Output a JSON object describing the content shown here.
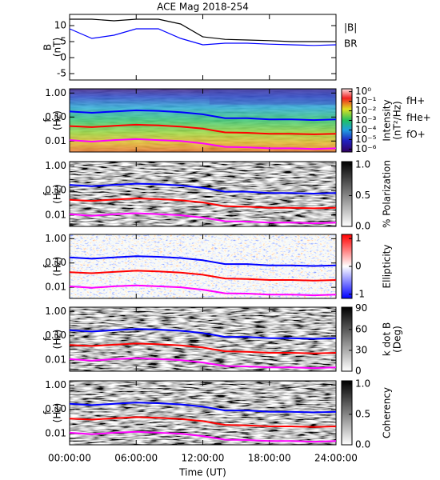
{
  "chart_data": [
    {
      "type": "line",
      "title": "ACE Mag 2018-254",
      "ylabel": [
        "B",
        "(nT)"
      ],
      "x": [
        0,
        2,
        4,
        6,
        8,
        10,
        12,
        14,
        16,
        18,
        20,
        22,
        24
      ],
      "xlim": [
        0,
        24
      ],
      "ylim": [
        -7,
        13.5
      ],
      "yticks": [
        -5,
        0,
        5,
        10
      ],
      "legend": "right",
      "series": [
        {
          "name": "|B|",
          "color": "#000000",
          "values": [
            12,
            12,
            11.5,
            12,
            12,
            10.5,
            6.5,
            5.7,
            5.5,
            5.3,
            5,
            5,
            5
          ]
        },
        {
          "name": "BR",
          "color": "#0000ff",
          "values": [
            9,
            6,
            7,
            9,
            9,
            6,
            4,
            4.5,
            4.5,
            4.2,
            4,
            3.8,
            4
          ]
        }
      ]
    },
    {
      "type": "spectrogram",
      "ylabel": [
        "f",
        "(Hz)"
      ],
      "log": true,
      "colormap": "rainbow",
      "x": [
        0,
        2,
        4,
        6,
        8,
        10,
        12,
        14,
        16,
        18,
        20,
        22,
        24
      ],
      "xlim": [
        0,
        24
      ],
      "ylim": [
        0.0035,
        1.5
      ],
      "yticks": [
        {
          "value": 1,
          "label": "1.00"
        },
        {
          "value": 0.1,
          "label": "0.10"
        },
        {
          "value": 0.01,
          "label": "0.01"
        }
      ],
      "colorbar_label": [
        "Intensity",
        "(nT²/Hz)"
      ],
      "clim": [
        5e-07,
        2
      ],
      "colorbar_log": true,
      "cticks": [
        {
          "value": 1,
          "label": "10⁰"
        },
        {
          "value": 0.1,
          "label": "10⁻¹"
        },
        {
          "value": 0.01,
          "label": "10⁻²"
        },
        {
          "value": 0.001,
          "label": "10⁻³"
        },
        {
          "value": 0.0001,
          "label": "10⁻⁴"
        },
        {
          "value": 1e-05,
          "label": "10⁻⁵"
        },
        {
          "value": 1e-06,
          "label": "10⁻⁶"
        }
      ],
      "legend": "right",
      "series": [
        {
          "name": "fH+",
          "color": "#0000ff",
          "values": [
            0.17,
            0.15,
            0.17,
            0.19,
            0.18,
            0.16,
            0.13,
            0.09,
            0.09,
            0.08,
            0.08,
            0.075,
            0.08
          ]
        },
        {
          "name": "fHe+",
          "color": "#ff0000",
          "values": [
            0.042,
            0.038,
            0.043,
            0.048,
            0.045,
            0.04,
            0.033,
            0.023,
            0.022,
            0.02,
            0.02,
            0.019,
            0.02
          ]
        },
        {
          "name": "fO+",
          "color": "#ff00ff",
          "values": [
            0.011,
            0.0095,
            0.011,
            0.012,
            0.011,
            0.01,
            0.008,
            0.0057,
            0.0055,
            0.005,
            0.005,
            0.0047,
            0.005
          ]
        }
      ]
    },
    {
      "type": "spectrogram",
      "ylabel": [
        "f",
        "(Hz)"
      ],
      "log": true,
      "colormap": "gray",
      "x": [
        0,
        2,
        4,
        6,
        8,
        10,
        12,
        14,
        16,
        18,
        20,
        22,
        24
      ],
      "xlim": [
        0,
        24
      ],
      "ylim": [
        0.0035,
        1.5
      ],
      "yticks": [
        {
          "value": 1,
          "label": "1.00"
        },
        {
          "value": 0.1,
          "label": "0.10"
        },
        {
          "value": 0.01,
          "label": "0.01"
        }
      ],
      "colorbar_label": [
        "% Polarization"
      ],
      "clim": [
        0,
        1.05
      ],
      "cticks": [
        {
          "value": 0,
          "label": "0.0"
        },
        {
          "value": 0.5,
          "label": "0.5"
        },
        {
          "value": 1,
          "label": "1.0"
        }
      ],
      "series": [
        {
          "color": "#0000ff",
          "values": [
            0.17,
            0.15,
            0.17,
            0.19,
            0.18,
            0.16,
            0.13,
            0.09,
            0.09,
            0.08,
            0.08,
            0.075,
            0.08
          ]
        },
        {
          "color": "#ff0000",
          "values": [
            0.042,
            0.038,
            0.043,
            0.048,
            0.045,
            0.04,
            0.033,
            0.023,
            0.022,
            0.02,
            0.02,
            0.019,
            0.02
          ]
        },
        {
          "color": "#ff00ff",
          "values": [
            0.011,
            0.0095,
            0.011,
            0.012,
            0.011,
            0.01,
            0.008,
            0.0057,
            0.0055,
            0.005,
            0.005,
            0.0047,
            0.005
          ]
        }
      ]
    },
    {
      "type": "spectrogram",
      "ylabel": [
        "f",
        "(Hz)"
      ],
      "log": true,
      "colormap": "bwr",
      "x": [
        0,
        2,
        4,
        6,
        8,
        10,
        12,
        14,
        16,
        18,
        20,
        22,
        24
      ],
      "xlim": [
        0,
        24
      ],
      "ylim": [
        0.0035,
        1.5
      ],
      "yticks": [
        {
          "value": 1,
          "label": "1.00"
        },
        {
          "value": 0.1,
          "label": "0.10"
        },
        {
          "value": 0.01,
          "label": "0.01"
        }
      ],
      "colorbar_label": [
        "Ellipticity"
      ],
      "clim": [
        -1.15,
        1.15
      ],
      "cticks": [
        -1,
        0,
        1
      ],
      "series": [
        {
          "color": "#0000ff",
          "values": [
            0.17,
            0.15,
            0.17,
            0.19,
            0.18,
            0.16,
            0.13,
            0.09,
            0.09,
            0.08,
            0.08,
            0.075,
            0.08
          ]
        },
        {
          "color": "#ff0000",
          "values": [
            0.042,
            0.038,
            0.043,
            0.048,
            0.045,
            0.04,
            0.033,
            0.023,
            0.022,
            0.02,
            0.02,
            0.019,
            0.02
          ]
        },
        {
          "color": "#ff00ff",
          "values": [
            0.011,
            0.0095,
            0.011,
            0.012,
            0.011,
            0.01,
            0.008,
            0.0057,
            0.0055,
            0.005,
            0.005,
            0.0047,
            0.005
          ]
        }
      ]
    },
    {
      "type": "spectrogram",
      "ylabel": [
        "f",
        "(Hz)"
      ],
      "log": true,
      "colormap": "gray",
      "x": [
        0,
        2,
        4,
        6,
        8,
        10,
        12,
        14,
        16,
        18,
        20,
        22,
        24
      ],
      "xlim": [
        0,
        24
      ],
      "ylim": [
        0.0035,
        1.5
      ],
      "yticks": [
        {
          "value": 1,
          "label": "1.00"
        },
        {
          "value": 0.1,
          "label": "0.10"
        },
        {
          "value": 0.01,
          "label": "0.01"
        }
      ],
      "colorbar_label": [
        "k dot B",
        "(Deg)"
      ],
      "clim": [
        0,
        92
      ],
      "cticks": [
        0,
        30,
        60,
        90
      ],
      "series": [
        {
          "color": "#0000ff",
          "values": [
            0.17,
            0.15,
            0.17,
            0.19,
            0.18,
            0.16,
            0.13,
            0.09,
            0.09,
            0.08,
            0.08,
            0.075,
            0.08
          ]
        },
        {
          "color": "#ff0000",
          "values": [
            0.042,
            0.038,
            0.043,
            0.048,
            0.045,
            0.04,
            0.033,
            0.023,
            0.022,
            0.02,
            0.02,
            0.019,
            0.02
          ]
        },
        {
          "color": "#ff00ff",
          "values": [
            0.011,
            0.0095,
            0.011,
            0.012,
            0.011,
            0.01,
            0.008,
            0.0057,
            0.0055,
            0.005,
            0.005,
            0.0047,
            0.005
          ]
        }
      ]
    },
    {
      "type": "spectrogram",
      "ylabel": [
        "f",
        "(Hz)"
      ],
      "log": true,
      "colormap": "gray",
      "x": [
        0,
        2,
        4,
        6,
        8,
        10,
        12,
        14,
        16,
        18,
        20,
        22,
        24
      ],
      "xlim": [
        0,
        24
      ],
      "ylim": [
        0.0035,
        1.5
      ],
      "yticks": [
        {
          "value": 1,
          "label": "1.00"
        },
        {
          "value": 0.1,
          "label": "0.10"
        },
        {
          "value": 0.01,
          "label": "0.01"
        }
      ],
      "colorbar_label": [
        "Coherency"
      ],
      "clim": [
        0,
        1.05
      ],
      "cticks": [
        {
          "value": 0,
          "label": "0.0"
        },
        {
          "value": 0.5,
          "label": "0.5"
        },
        {
          "value": 1,
          "label": "1.0"
        }
      ],
      "xticks": [
        {
          "value": 0,
          "label": "00:00:00"
        },
        {
          "value": 6,
          "label": "06:00:00"
        },
        {
          "value": 12,
          "label": "12:00:00"
        },
        {
          "value": 18,
          "label": "18:00:00"
        },
        {
          "value": 24,
          "label": "24:00:00"
        }
      ],
      "xlabel": "Time (UT)",
      "series": [
        {
          "color": "#0000ff",
          "values": [
            0.17,
            0.15,
            0.17,
            0.19,
            0.18,
            0.16,
            0.13,
            0.09,
            0.09,
            0.08,
            0.08,
            0.075,
            0.08
          ]
        },
        {
          "color": "#ff0000",
          "values": [
            0.042,
            0.038,
            0.043,
            0.048,
            0.045,
            0.04,
            0.033,
            0.023,
            0.022,
            0.02,
            0.02,
            0.019,
            0.02
          ]
        },
        {
          "color": "#ff00ff",
          "values": [
            0.011,
            0.0095,
            0.011,
            0.012,
            0.011,
            0.01,
            0.008,
            0.0057,
            0.0055,
            0.005,
            0.005,
            0.0047,
            0.005
          ]
        }
      ]
    }
  ]
}
